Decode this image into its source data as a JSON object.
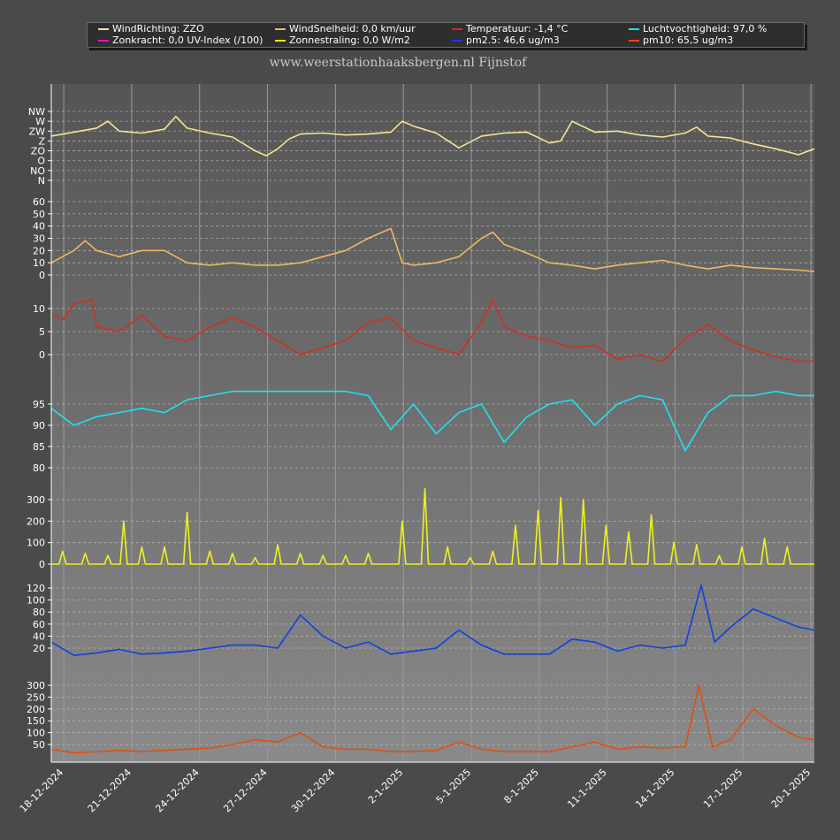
{
  "title": "www.weerstationhaaksbergen.nl Fijnstof",
  "legend": [
    {
      "label": "WindRichting: ZZO",
      "color": "#f5e493"
    },
    {
      "label": "WindSnelheid: 0,0 km/uur",
      "color": "#f0b860"
    },
    {
      "label": "Temperatuur: -1,4 °C",
      "color": "#d03020"
    },
    {
      "label": "Luchtvochtigheid: 97,0 %",
      "color": "#20e0f0"
    },
    {
      "label": "Zonkracht: 0,0 UV-Index (/100)",
      "color": "#d020c0"
    },
    {
      "label": "Zonnestraling: 0,0 W/m2",
      "color": "#f0f020"
    },
    {
      "label": "pm2.5: 46,6 ug/m3",
      "color": "#1040e0"
    },
    {
      "label": "pm10: 65,5 ug/m3",
      "color": "#e05010"
    }
  ],
  "chart_data": {
    "type": "line",
    "x_labels": [
      "18-12-2024",
      "21-12-2024",
      "24-12-2024",
      "27-12-2024",
      "30-12-2024",
      "2-1-2025",
      "5-1-2025",
      "8-1-2025",
      "11-1-2025",
      "14-1-2025",
      "17-1-2025",
      "20-1-2025"
    ],
    "x_range_days": [
      0,
      33.7
    ],
    "panels": [
      {
        "name": "WindRichting",
        "color": "#f5e493",
        "ticks": [
          "NW",
          "W",
          "ZW",
          "Z",
          "ZO",
          "O",
          "NO",
          "N"
        ],
        "points": [
          [
            0,
            4.5
          ],
          [
            1,
            4.9
          ],
          [
            2,
            5.3
          ],
          [
            2.5,
            6
          ],
          [
            3,
            5
          ],
          [
            4,
            4.8
          ],
          [
            5,
            5.2
          ],
          [
            5.5,
            6.5
          ],
          [
            6,
            5.3
          ],
          [
            7,
            4.8
          ],
          [
            8,
            4.4
          ],
          [
            9,
            3
          ],
          [
            9.5,
            2.5
          ],
          [
            10,
            3.2
          ],
          [
            10.5,
            4.2
          ],
          [
            11,
            4.7
          ],
          [
            12,
            4.8
          ],
          [
            13,
            4.6
          ],
          [
            14,
            4.7
          ],
          [
            15,
            4.9
          ],
          [
            15.5,
            6
          ],
          [
            16,
            5.5
          ],
          [
            17,
            4.8
          ],
          [
            18,
            3.3
          ],
          [
            19,
            4.5
          ],
          [
            20,
            4.8
          ],
          [
            21,
            4.9
          ],
          [
            22,
            3.8
          ],
          [
            22.5,
            4
          ],
          [
            23,
            6
          ],
          [
            24,
            4.9
          ],
          [
            25,
            5
          ],
          [
            26,
            4.6
          ],
          [
            27,
            4.4
          ],
          [
            28,
            4.8
          ],
          [
            28.5,
            5.4
          ],
          [
            29,
            4.5
          ],
          [
            30,
            4.3
          ],
          [
            31,
            3.7
          ],
          [
            32,
            3.2
          ],
          [
            33,
            2.6
          ],
          [
            33.7,
            3.2
          ]
        ]
      },
      {
        "name": "WindSnelheid",
        "color": "#f0b860",
        "ticks": [
          0,
          10,
          20,
          30,
          40,
          50,
          60
        ],
        "points": [
          [
            0,
            10
          ],
          [
            1,
            20
          ],
          [
            1.5,
            28
          ],
          [
            2,
            20
          ],
          [
            3,
            15
          ],
          [
            4,
            20
          ],
          [
            5,
            20
          ],
          [
            6,
            10
          ],
          [
            7,
            8
          ],
          [
            8,
            10
          ],
          [
            9,
            8
          ],
          [
            10,
            8
          ],
          [
            11,
            10
          ],
          [
            12,
            15
          ],
          [
            13,
            20
          ],
          [
            14,
            30
          ],
          [
            15,
            38
          ],
          [
            15.5,
            10
          ],
          [
            16,
            8
          ],
          [
            17,
            10
          ],
          [
            18,
            15
          ],
          [
            19,
            30
          ],
          [
            19.5,
            35
          ],
          [
            20,
            25
          ],
          [
            21,
            18
          ],
          [
            22,
            10
          ],
          [
            23,
            8
          ],
          [
            24,
            5
          ],
          [
            25,
            8
          ],
          [
            26,
            10
          ],
          [
            27,
            12
          ],
          [
            28,
            8
          ],
          [
            29,
            5
          ],
          [
            30,
            8
          ],
          [
            31,
            6
          ],
          [
            32,
            5
          ],
          [
            33,
            4
          ],
          [
            33.7,
            3
          ]
        ]
      },
      {
        "name": "Temperatuur",
        "color": "#d03020",
        "ticks": [
          0,
          5,
          10
        ],
        "points": [
          [
            0,
            9
          ],
          [
            0.5,
            7.5
          ],
          [
            1,
            11
          ],
          [
            1.8,
            12
          ],
          [
            2,
            6
          ],
          [
            3,
            5
          ],
          [
            4,
            8.5
          ],
          [
            5,
            4
          ],
          [
            6,
            3
          ],
          [
            7,
            6
          ],
          [
            8,
            8
          ],
          [
            9,
            6
          ],
          [
            10,
            3
          ],
          [
            11,
            0
          ],
          [
            12,
            1.5
          ],
          [
            13,
            3
          ],
          [
            14,
            7
          ],
          [
            15,
            8
          ],
          [
            16,
            3
          ],
          [
            17,
            1.5
          ],
          [
            18,
            0
          ],
          [
            19,
            7
          ],
          [
            19.5,
            12
          ],
          [
            20,
            6
          ],
          [
            21,
            4
          ],
          [
            22,
            3
          ],
          [
            23,
            1.5
          ],
          [
            24,
            2
          ],
          [
            25,
            -1
          ],
          [
            26,
            0
          ],
          [
            27,
            -1.5
          ],
          [
            28,
            3.5
          ],
          [
            29,
            6.5
          ],
          [
            30,
            3
          ],
          [
            31,
            1
          ],
          [
            32,
            -0.5
          ],
          [
            33,
            -1.5
          ],
          [
            33.7,
            -1.4
          ]
        ]
      },
      {
        "name": "Luchtvochtigheid",
        "color": "#20e0f0",
        "ticks": [
          80,
          85,
          90,
          95
        ],
        "points": [
          [
            0,
            94
          ],
          [
            1,
            90
          ],
          [
            2,
            92
          ],
          [
            3,
            93
          ],
          [
            4,
            94
          ],
          [
            5,
            93
          ],
          [
            6,
            96
          ],
          [
            7,
            97
          ],
          [
            8,
            98
          ],
          [
            9,
            98
          ],
          [
            10,
            98
          ],
          [
            11,
            98
          ],
          [
            12,
            98
          ],
          [
            13,
            98
          ],
          [
            14,
            97
          ],
          [
            15,
            89
          ],
          [
            16,
            95
          ],
          [
            17,
            88
          ],
          [
            18,
            93
          ],
          [
            19,
            95
          ],
          [
            20,
            86
          ],
          [
            21,
            92
          ],
          [
            22,
            95
          ],
          [
            23,
            96
          ],
          [
            24,
            90
          ],
          [
            25,
            95
          ],
          [
            26,
            97
          ],
          [
            27,
            96
          ],
          [
            28,
            84
          ],
          [
            29,
            93
          ],
          [
            30,
            97
          ],
          [
            31,
            97
          ],
          [
            32,
            98
          ],
          [
            33,
            97
          ],
          [
            33.7,
            97
          ]
        ]
      },
      {
        "name": "Zonnestraling",
        "color": "#f0f020",
        "ticks": [
          0,
          100,
          200,
          300
        ],
        "points": [
          [
            0.5,
            60
          ],
          [
            1.5,
            50
          ],
          [
            2.5,
            40
          ],
          [
            3.2,
            200
          ],
          [
            4,
            80
          ],
          [
            5,
            80
          ],
          [
            6,
            240
          ],
          [
            7,
            60
          ],
          [
            8,
            50
          ],
          [
            9,
            30
          ],
          [
            10,
            90
          ],
          [
            11,
            50
          ],
          [
            12,
            40
          ],
          [
            13,
            40
          ],
          [
            14,
            50
          ],
          [
            15.5,
            200
          ],
          [
            16.5,
            350
          ],
          [
            17.5,
            80
          ],
          [
            18.5,
            30
          ],
          [
            19.5,
            60
          ],
          [
            20.5,
            180
          ],
          [
            21.5,
            250
          ],
          [
            22.5,
            310
          ],
          [
            23.5,
            300
          ],
          [
            24.5,
            180
          ],
          [
            25.5,
            150
          ],
          [
            26.5,
            230
          ],
          [
            27.5,
            100
          ],
          [
            28.5,
            90
          ],
          [
            29.5,
            40
          ],
          [
            30.5,
            80
          ],
          [
            31.5,
            120
          ],
          [
            32.5,
            80
          ]
        ]
      },
      {
        "name": "pm2.5",
        "color": "#1040e0",
        "ticks": [
          20,
          40,
          60,
          80,
          100,
          120
        ],
        "points": [
          [
            0,
            30
          ],
          [
            1,
            8
          ],
          [
            2,
            12
          ],
          [
            3,
            18
          ],
          [
            4,
            10
          ],
          [
            5,
            12
          ],
          [
            6,
            15
          ],
          [
            7,
            20
          ],
          [
            8,
            25
          ],
          [
            9,
            25
          ],
          [
            10,
            20
          ],
          [
            11,
            75
          ],
          [
            12,
            40
          ],
          [
            13,
            20
          ],
          [
            14,
            30
          ],
          [
            15,
            10
          ],
          [
            16,
            15
          ],
          [
            17,
            20
          ],
          [
            18,
            50
          ],
          [
            19,
            25
          ],
          [
            20,
            10
          ],
          [
            21,
            10
          ],
          [
            22,
            10
          ],
          [
            23,
            35
          ],
          [
            24,
            30
          ],
          [
            25,
            15
          ],
          [
            26,
            25
          ],
          [
            27,
            20
          ],
          [
            28,
            25
          ],
          [
            28.7,
            125
          ],
          [
            29.3,
            30
          ],
          [
            30,
            55
          ],
          [
            31,
            85
          ],
          [
            32,
            70
          ],
          [
            33,
            55
          ],
          [
            33.7,
            50
          ]
        ]
      },
      {
        "name": "pm10",
        "color": "#e05010",
        "ticks": [
          50,
          100,
          150,
          200,
          250,
          300
        ],
        "points": [
          [
            0,
            30
          ],
          [
            1,
            15
          ],
          [
            2,
            20
          ],
          [
            3,
            25
          ],
          [
            4,
            20
          ],
          [
            5,
            25
          ],
          [
            6,
            30
          ],
          [
            7,
            35
          ],
          [
            8,
            50
          ],
          [
            9,
            70
          ],
          [
            10,
            60
          ],
          [
            11,
            100
          ],
          [
            12,
            40
          ],
          [
            13,
            30
          ],
          [
            14,
            30
          ],
          [
            15,
            20
          ],
          [
            16,
            20
          ],
          [
            17,
            25
          ],
          [
            18,
            60
          ],
          [
            19,
            30
          ],
          [
            20,
            20
          ],
          [
            21,
            20
          ],
          [
            22,
            20
          ],
          [
            23,
            40
          ],
          [
            24,
            60
          ],
          [
            25,
            30
          ],
          [
            26,
            40
          ],
          [
            27,
            35
          ],
          [
            28,
            40
          ],
          [
            28.6,
            300
          ],
          [
            29.2,
            40
          ],
          [
            30,
            70
          ],
          [
            31,
            200
          ],
          [
            32,
            130
          ],
          [
            33,
            80
          ],
          [
            33.7,
            70
          ]
        ]
      }
    ]
  }
}
